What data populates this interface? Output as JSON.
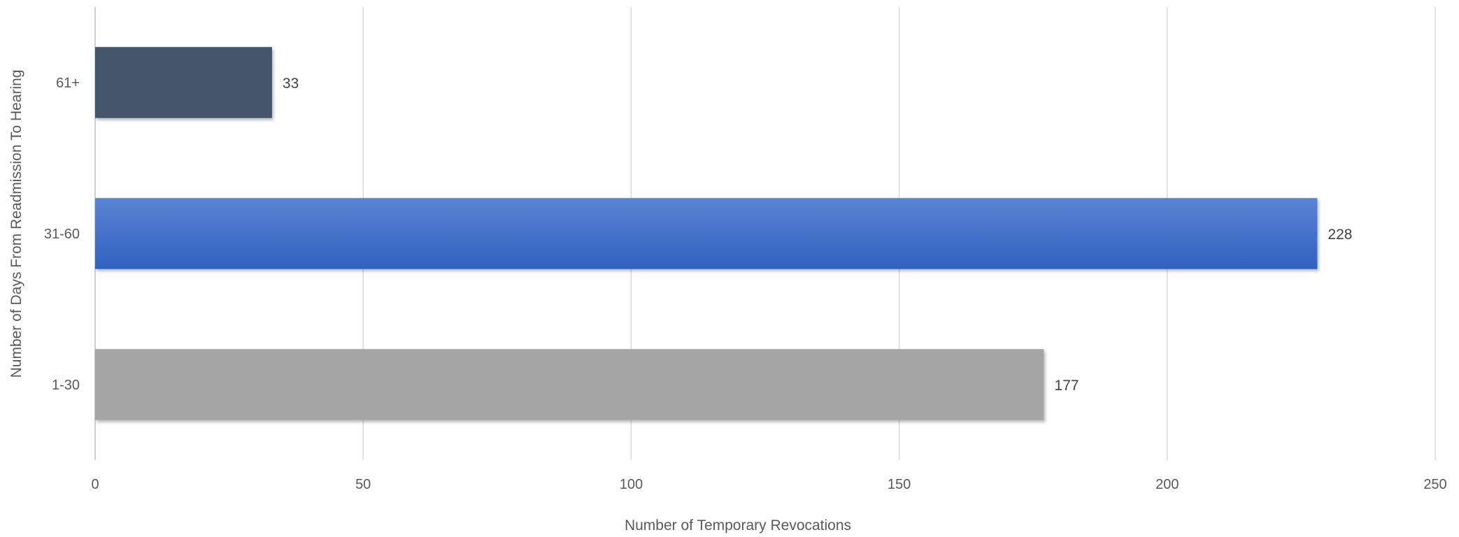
{
  "chart_data": {
    "type": "bar",
    "orientation": "horizontal",
    "categories": [
      "1-30",
      "31-60",
      "61+"
    ],
    "values": [
      177,
      228,
      33
    ],
    "bar_colors": [
      "#A5A5A5",
      "#3F6BC7",
      "#44546A"
    ],
    "data_labels": [
      "177",
      "228",
      "33"
    ],
    "xlabel": "Number of Temporary Revocations",
    "ylabel": "Number of Days From Readmission To Hearing",
    "xlim": [
      0,
      250
    ],
    "x_ticks": [
      0,
      50,
      100,
      150,
      200,
      250
    ],
    "x_tick_labels": [
      "0",
      "50",
      "100",
      "150",
      "200",
      "250"
    ],
    "grid": "vertical",
    "legend": "none"
  }
}
